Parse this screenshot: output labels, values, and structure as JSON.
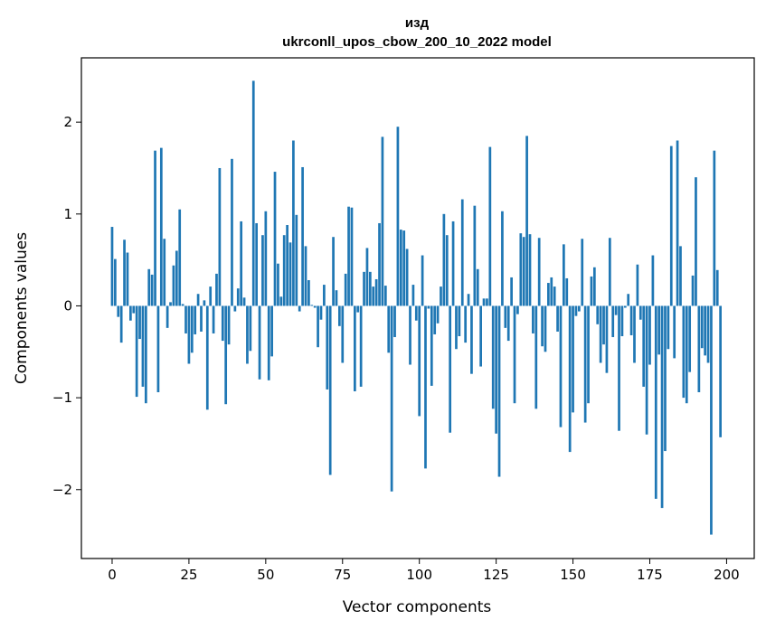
{
  "chart_data": {
    "type": "bar",
    "title_line1": "изд",
    "title_line2": "ukrconll_upos_cbow_200_10_2022 model",
    "xlabel": "Vector components",
    "ylabel": "Components values",
    "xlim": [
      -10,
      209
    ],
    "ylim": [
      -2.75,
      2.7
    ],
    "xticks": [
      0,
      25,
      50,
      75,
      100,
      125,
      150,
      175,
      200
    ],
    "yticks": [
      -2,
      -1,
      0,
      1,
      2
    ],
    "bar_color": "#1f77b4",
    "grid": false,
    "values": [
      0.86,
      0.51,
      -0.12,
      -0.4,
      0.72,
      0.58,
      -0.16,
      -0.08,
      -0.99,
      -0.36,
      -0.88,
      -1.06,
      0.4,
      0.34,
      1.69,
      -0.94,
      1.72,
      0.73,
      -0.24,
      0.04,
      0.44,
      0.6,
      1.05,
      0.02,
      -0.3,
      -0.63,
      -0.51,
      -0.31,
      0.13,
      -0.28,
      0.06,
      -1.13,
      0.21,
      -0.3,
      0.35,
      1.5,
      -0.38,
      -1.07,
      -0.42,
      1.6,
      -0.06,
      0.19,
      0.92,
      0.09,
      -0.63,
      -0.49,
      2.45,
      0.9,
      -0.8,
      0.77,
      1.03,
      -0.81,
      -0.55,
      1.46,
      0.46,
      0.1,
      0.77,
      0.88,
      0.69,
      1.8,
      0.99,
      -0.06,
      1.51,
      0.65,
      0.28,
      0.01,
      -0.02,
      -0.45,
      -0.15,
      0.23,
      -0.91,
      -1.84,
      0.75,
      0.17,
      -0.22,
      -0.62,
      0.35,
      1.08,
      1.07,
      -0.93,
      -0.07,
      -0.88,
      0.37,
      0.63,
      0.37,
      0.21,
      0.29,
      0.9,
      1.84,
      0.22,
      -0.51,
      -2.02,
      -0.34,
      1.95,
      0.83,
      0.82,
      0.62,
      -0.64,
      0.23,
      -0.16,
      -1.2,
      0.55,
      -1.77,
      -0.03,
      -0.87,
      -0.31,
      -0.19,
      0.21,
      1.0,
      0.77,
      -1.38,
      0.92,
      -0.47,
      -0.33,
      1.16,
      -0.4,
      0.13,
      -0.74,
      1.09,
      0.4,
      -0.66,
      0.08,
      0.08,
      1.73,
      -1.12,
      -1.39,
      -1.86,
      1.03,
      -0.24,
      -0.38,
      0.31,
      -1.06,
      -0.09,
      0.79,
      0.75,
      1.85,
      0.78,
      -0.3,
      -1.12,
      0.74,
      -0.44,
      -0.5,
      0.25,
      0.31,
      0.21,
      -0.28,
      -1.32,
      0.67,
      0.3,
      -1.59,
      -1.16,
      -0.11,
      -0.06,
      0.73,
      -1.27,
      -1.06,
      0.32,
      0.42,
      -0.2,
      -0.62,
      -0.42,
      -0.73,
      0.74,
      -0.34,
      -0.1,
      -1.36,
      -0.33,
      -0.02,
      0.13,
      -0.32,
      -0.62,
      0.45,
      -0.15,
      -0.88,
      -1.4,
      -0.64,
      0.55,
      -2.1,
      -0.53,
      -2.2,
      -1.58,
      -0.47,
      1.74,
      -0.57,
      1.8,
      0.65,
      -1.0,
      -1.06,
      -0.72,
      0.33,
      1.4,
      -0.94,
      -0.46,
      -0.54,
      -0.62,
      -2.49,
      1.69,
      0.39,
      -1.43
    ]
  }
}
